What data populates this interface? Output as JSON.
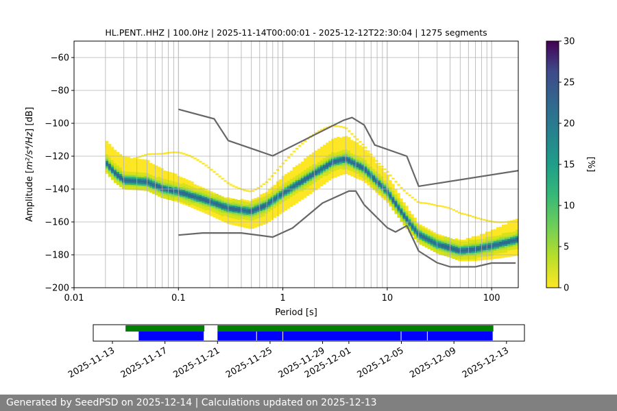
{
  "chart_data": [
    {
      "type": "heatmap",
      "title": "HL.PENT..HHZ | 100.0Hz | 2025-11-14T00:00:01 - 2025-12-12T22:30:04 | 1275 segments",
      "xlabel": "Period [s]",
      "ylabel_prefix": "Amplitude [",
      "ylabel_units": "m²/s⁴/Hz",
      "ylabel_suffix": "] [dB]",
      "xscale": "log",
      "xlim": [
        0.01,
        180
      ],
      "ylim": [
        -200,
        -50
      ],
      "x_ticks": [
        {
          "value": 0.01,
          "label": "0.01"
        },
        {
          "value": 0.1,
          "label": "0.1"
        },
        {
          "value": 1,
          "label": "1"
        },
        {
          "value": 10,
          "label": "10"
        },
        {
          "value": 100,
          "label": "100"
        }
      ],
      "y_ticks": [
        {
          "value": -60,
          "label": "−60"
        },
        {
          "value": -80,
          "label": "−80"
        },
        {
          "value": -100,
          "label": "−100"
        },
        {
          "value": -120,
          "label": "−120"
        },
        {
          "value": -140,
          "label": "−140"
        },
        {
          "value": -160,
          "label": "−160"
        },
        {
          "value": -180,
          "label": "−180"
        },
        {
          "value": -200,
          "label": "−200"
        }
      ],
      "grid": true,
      "colormap": "viridis",
      "colorbar": {
        "label": "[%]",
        "range": [
          0,
          30
        ],
        "ticks": [
          {
            "value": 0,
            "label": "0"
          },
          {
            "value": 5,
            "label": "5"
          },
          {
            "value": 10,
            "label": "10"
          },
          {
            "value": 15,
            "label": "15"
          },
          {
            "value": 20,
            "label": "20"
          },
          {
            "value": 25,
            "label": "25"
          },
          {
            "value": 30,
            "label": "30"
          }
        ]
      },
      "series": [
        {
          "type": "line",
          "color": "#666666",
          "points": [
            [
              0.1,
              -91.5
            ],
            [
              0.22,
              -97.3
            ],
            [
              0.3,
              -110.5
            ],
            [
              0.8,
              -119.8
            ],
            [
              3.8,
              -98.2
            ],
            [
              4.6,
              -96.5
            ],
            [
              6.0,
              -101
            ],
            [
              7.6,
              -113.2
            ],
            [
              15.4,
              -120
            ],
            [
              20,
              -138.3
            ],
            [
              180,
              -128.8
            ]
          ]
        },
        {
          "type": "line",
          "color": "#666666",
          "points": [
            [
              0.1,
              -168
            ],
            [
              0.17,
              -166.7
            ],
            [
              0.4,
              -166.7
            ],
            [
              0.8,
              -169.2
            ],
            [
              1.24,
              -163.7
            ],
            [
              2.4,
              -148.5
            ],
            [
              4.3,
              -141.2
            ],
            [
              5.0,
              -141.2
            ],
            [
              6.0,
              -149.5
            ],
            [
              10,
              -163.5
            ],
            [
              12,
              -166.1
            ],
            [
              15.4,
              -162.3
            ],
            [
              20,
              -177.7
            ],
            [
              30,
              -184.8
            ],
            [
              40,
              -187.3
            ],
            [
              70,
              -187.3
            ],
            [
              100,
              -185
            ],
            [
              170,
              -185
            ]
          ]
        }
      ],
      "density_ridge": [
        [
          0.02,
          -124
        ],
        [
          0.025,
          -131
        ],
        [
          0.03,
          -135
        ],
        [
          0.05,
          -136
        ],
        [
          0.07,
          -140
        ],
        [
          0.1,
          -142
        ],
        [
          0.2,
          -148
        ],
        [
          0.3,
          -152
        ],
        [
          0.5,
          -154
        ],
        [
          0.7,
          -150
        ],
        [
          1,
          -143
        ],
        [
          2,
          -131
        ],
        [
          3,
          -124
        ],
        [
          4,
          -122
        ],
        [
          6,
          -128
        ],
        [
          10,
          -142
        ],
        [
          15,
          -158
        ],
        [
          20,
          -168
        ],
        [
          30,
          -174
        ],
        [
          50,
          -178
        ],
        [
          70,
          -177
        ],
        [
          100,
          -175
        ],
        [
          180,
          -171
        ]
      ]
    },
    {
      "type": "timeline",
      "x_ticks": [
        "2025-11-13",
        "2025-11-17",
        "2025-11-21",
        "2025-11-25",
        "2025-11-29",
        "2025-12-01",
        "2025-12-05",
        "2025-12-09",
        "2025-12-13"
      ],
      "xlim": [
        "2025-11-13",
        "2025-12-14"
      ],
      "green_spans": [
        [
          "2025-11-14",
          "2025-11-20"
        ],
        [
          "2025-11-21",
          "2025-12-12"
        ]
      ],
      "blue_spans": [
        [
          "2025-11-15",
          "2025-11-20"
        ],
        [
          "2025-11-21",
          "2025-11-24"
        ],
        [
          "2025-11-24",
          "2025-11-26"
        ],
        [
          "2025-11-26",
          "2025-12-05"
        ],
        [
          "2025-12-05",
          "2025-12-07"
        ],
        [
          "2025-12-07",
          "2025-12-12"
        ]
      ]
    }
  ],
  "footer": "Generated by SeedPSD on 2025-12-14 | Calculations updated on 2025-12-13"
}
